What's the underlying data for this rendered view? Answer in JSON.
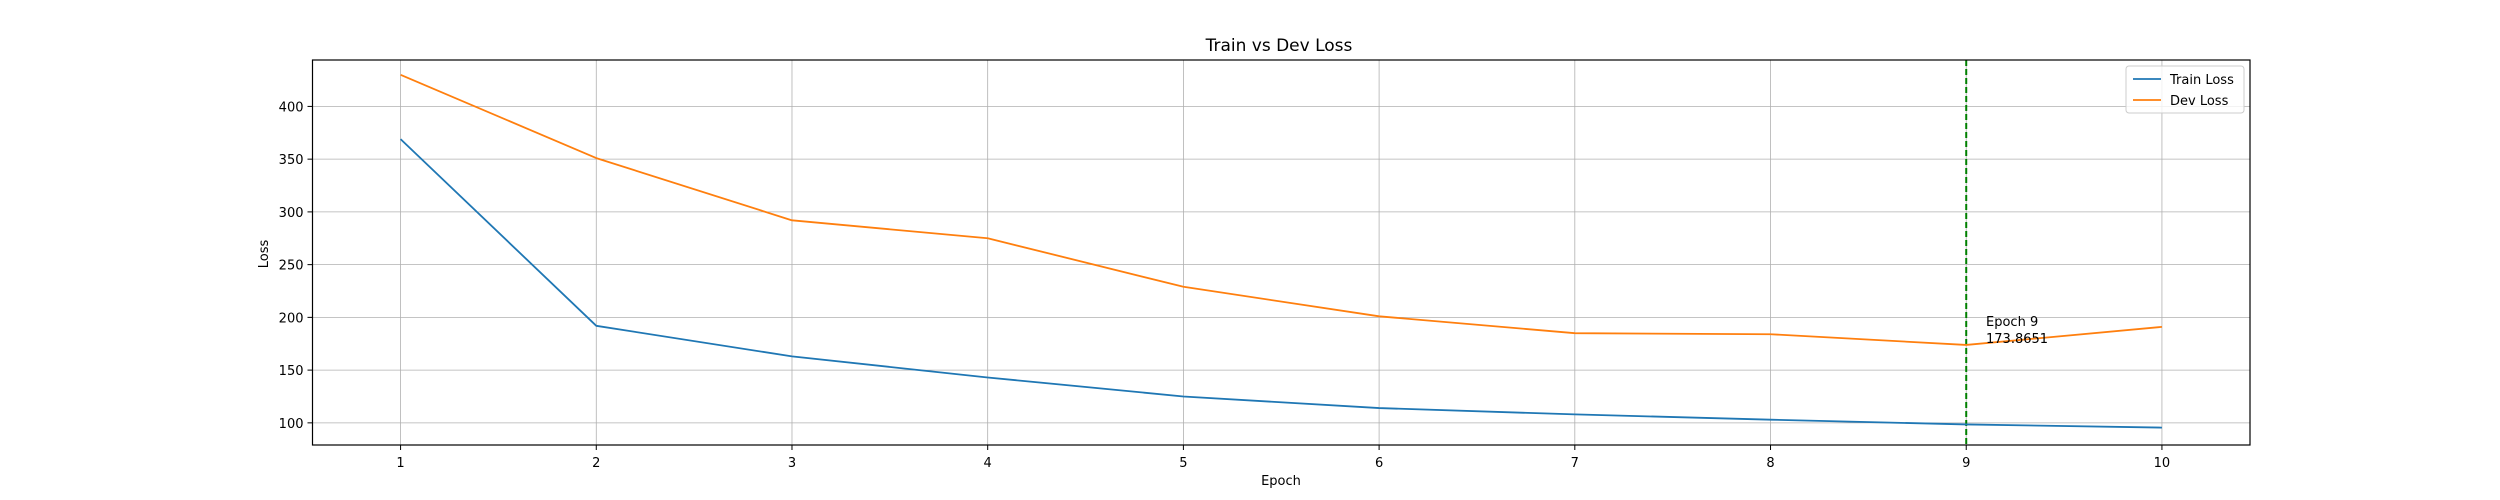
{
  "chart_data": {
    "type": "line",
    "title": "Train vs Dev Loss",
    "xlabel": "Epoch",
    "ylabel": "Loss",
    "x": [
      1,
      2,
      3,
      4,
      5,
      6,
      7,
      8,
      9,
      10
    ],
    "xlim": [
      0.55,
      10.45
    ],
    "ylim": [
      79,
      444
    ],
    "xticks": [
      1,
      2,
      3,
      4,
      5,
      6,
      7,
      8,
      9,
      10
    ],
    "yticks": [
      100,
      150,
      200,
      250,
      300,
      350,
      400
    ],
    "grid": true,
    "legend_position": "top-right",
    "series": [
      {
        "name": "Train Loss",
        "color": "#1f77b4",
        "values": [
          369,
          192,
          163,
          143,
          125,
          114,
          108,
          103,
          98.5,
          95.5
        ]
      },
      {
        "name": "Dev Loss",
        "color": "#ff7f0e",
        "values": [
          430,
          351,
          292,
          275,
          229,
          201,
          185,
          184,
          173.8651,
          191
        ]
      }
    ],
    "best_marker": {
      "x": 9,
      "color": "#008000",
      "label": "Epoch 9",
      "value_label": "173.8651"
    }
  }
}
